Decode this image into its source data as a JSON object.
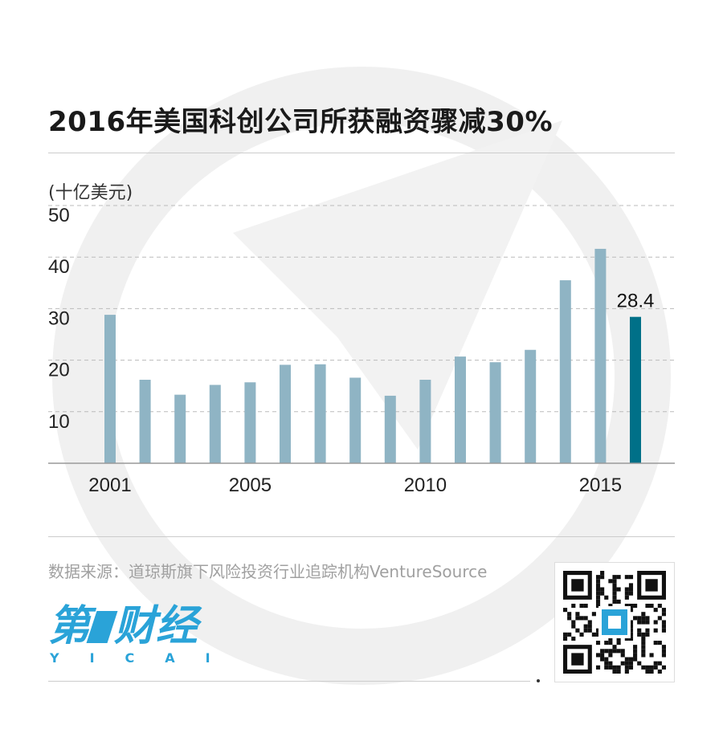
{
  "title": "2016年美国科创公司所获融资骤减30%",
  "unit_label": "(十亿美元)",
  "source": "数据来源：道琼斯旗下风险投资行业追踪机构VentureSource",
  "logo": {
    "main_left": "第",
    "main_right": "财经",
    "sub": "YICAI"
  },
  "colors": {
    "bar": "#8fb4c4",
    "highlight": "#007088",
    "grid": "#bbbbbb",
    "brand": "#2aa3d8"
  },
  "chart_data": {
    "type": "bar",
    "title": "2016年美国科创公司所获融资骤减30%",
    "ylabel": "(十亿美元)",
    "xlabel": "",
    "x": [
      2001,
      2002,
      2003,
      2004,
      2005,
      2006,
      2007,
      2008,
      2009,
      2010,
      2011,
      2012,
      2013,
      2014,
      2015,
      2016
    ],
    "values": [
      28.8,
      16.2,
      13.3,
      15.2,
      15.7,
      19.1,
      19.2,
      16.6,
      13.1,
      16.2,
      20.7,
      19.6,
      22.0,
      35.5,
      41.6,
      28.4
    ],
    "x_tick_labels": [
      "2001",
      "2005",
      "2010",
      "2015"
    ],
    "y_ticks": [
      10,
      20,
      30,
      40,
      50
    ],
    "ylim": [
      0,
      50
    ],
    "grid": true,
    "highlight_index": 15,
    "data_labels": [
      {
        "index": 15,
        "text": "28.4"
      }
    ]
  }
}
